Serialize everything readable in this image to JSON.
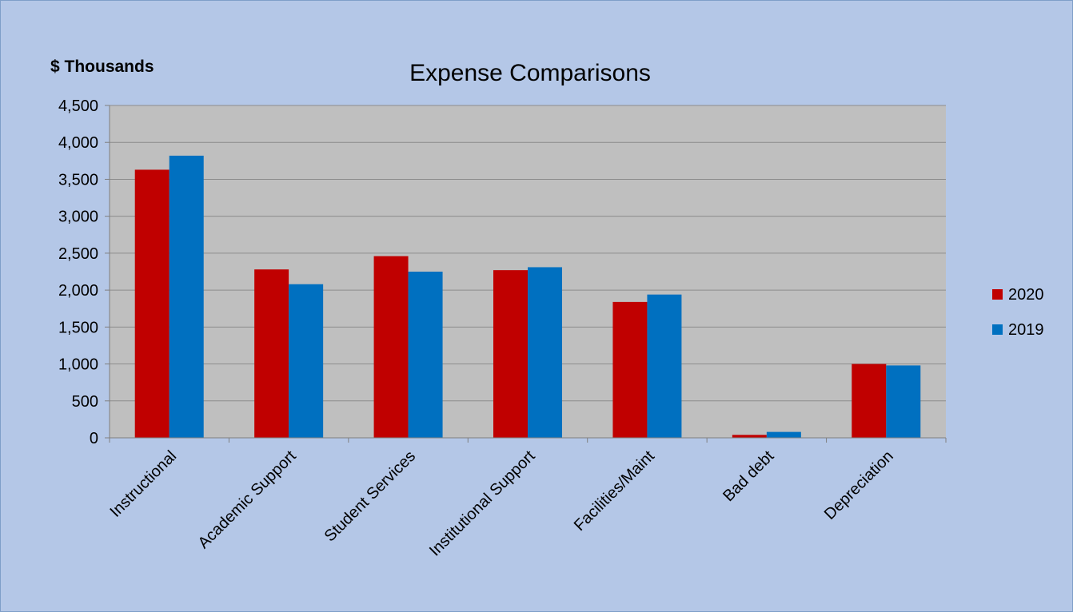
{
  "chart_data": {
    "type": "bar",
    "title": "Expense Comparisons",
    "ylabel": "$ Thousands",
    "xlabel": "",
    "categories": [
      "Instructional",
      "Academic Support",
      "Student Services",
      "Institutional Support",
      "Facilities/Maint",
      "Bad debt",
      "Depreciation"
    ],
    "series": [
      {
        "name": "2020",
        "color": "#c00000",
        "values": [
          3630,
          2280,
          2460,
          2270,
          1840,
          40,
          1000
        ]
      },
      {
        "name": "2019",
        "color": "#0070c0",
        "values": [
          3820,
          2080,
          2250,
          2310,
          1940,
          80,
          980
        ]
      }
    ],
    "ylim": [
      0,
      4500
    ],
    "yticks": [
      0,
      500,
      1000,
      1500,
      2000,
      2500,
      3000,
      3500,
      4000,
      4500
    ],
    "ytick_labels": [
      "0",
      "500",
      "1,000",
      "1,500",
      "2,000",
      "2,500",
      "3,000",
      "3,500",
      "4,000",
      "4,500"
    ],
    "grid": true,
    "legend_position": "right",
    "plot_background": "#bfbfbf",
    "chart_background": "#b4c7e7"
  }
}
